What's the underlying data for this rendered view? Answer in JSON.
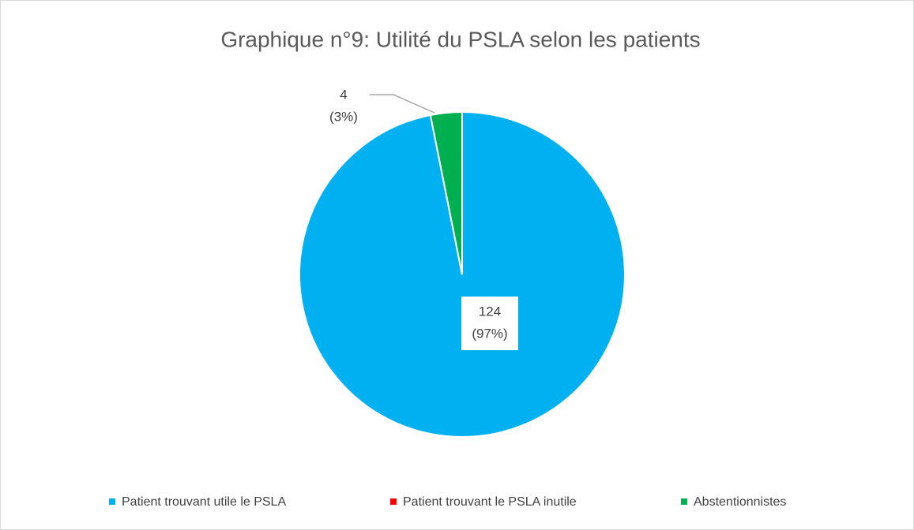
{
  "chart_data": {
    "type": "pie",
    "title": "Graphique n°9: Utilité du PSLA selon les patients",
    "categories": [
      "Patient trouvant utile le PSLA",
      "Patient trouvant le PSLA inutile",
      "Abstentionnistes"
    ],
    "values": [
      124,
      0,
      4
    ],
    "value_labels": [
      [
        "124",
        "(97%)"
      ],
      null,
      [
        "4",
        "(3%)"
      ]
    ],
    "colors": [
      "#00b0f0",
      "#ff0000",
      "#00b050"
    ],
    "legend": "bottom"
  }
}
